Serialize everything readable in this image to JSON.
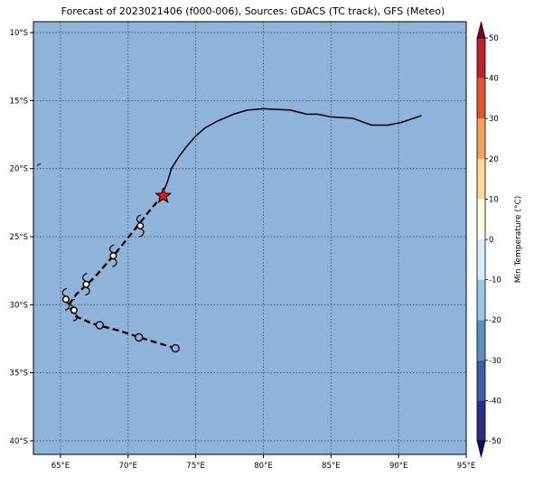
{
  "title": "Forecast of 2023021406 (f000-006), Sources: GDACS (TC track), GFS (Meteo)",
  "map": {
    "lon_range": [
      63,
      95
    ],
    "lat_range": [
      -41,
      -9.2
    ],
    "x_ticks": [
      {
        "value": 65,
        "label": "65°E"
      },
      {
        "value": 70,
        "label": "70°E"
      },
      {
        "value": 75,
        "label": "75°E"
      },
      {
        "value": 80,
        "label": "80°E"
      },
      {
        "value": 85,
        "label": "85°E"
      },
      {
        "value": 90,
        "label": "90°E"
      },
      {
        "value": 95,
        "label": "95°E"
      }
    ],
    "y_ticks": [
      {
        "value": -10,
        "label": "10°S"
      },
      {
        "value": -15,
        "label": "15°S"
      },
      {
        "value": -20,
        "label": "20°S"
      },
      {
        "value": -25,
        "label": "25°S"
      },
      {
        "value": -30,
        "label": "30°S"
      },
      {
        "value": -35,
        "label": "35°S"
      },
      {
        "value": -40,
        "label": "40°S"
      }
    ],
    "background_color": "#8fb3d9",
    "grid": true
  },
  "past_track": [
    [
      72.6,
      -21.7
    ],
    [
      72.9,
      -21.0
    ],
    [
      73.2,
      -20.0
    ],
    [
      73.7,
      -19.2
    ],
    [
      74.3,
      -18.4
    ],
    [
      75.0,
      -17.6
    ],
    [
      75.7,
      -17.0
    ],
    [
      76.6,
      -16.5
    ],
    [
      77.8,
      -16.0
    ],
    [
      78.8,
      -15.7
    ],
    [
      80.0,
      -15.6
    ],
    [
      82.0,
      -15.7
    ],
    [
      83.2,
      -16.0
    ],
    [
      84.0,
      -16.0
    ],
    [
      85.0,
      -16.2
    ],
    [
      86.6,
      -16.3
    ],
    [
      88.0,
      -16.8
    ],
    [
      89.2,
      -16.8
    ],
    [
      90.2,
      -16.6
    ],
    [
      91.7,
      -16.1
    ]
  ],
  "forecast_track": [
    [
      72.6,
      -21.9
    ],
    [
      71.5,
      -23.2
    ],
    [
      70.3,
      -24.7
    ],
    [
      69.0,
      -26.3
    ],
    [
      67.5,
      -28.0
    ],
    [
      66.2,
      -29.2
    ],
    [
      65.6,
      -30.0
    ],
    [
      66.0,
      -30.8
    ],
    [
      67.4,
      -31.4
    ],
    [
      69.3,
      -31.9
    ],
    [
      71.5,
      -32.6
    ],
    [
      73.5,
      -33.2
    ]
  ],
  "current_position": {
    "lon": 72.6,
    "lat": -22.0,
    "color": "#e8141b"
  },
  "forecast_points": [
    {
      "lon": 70.9,
      "lat": -24.2,
      "symbol": "tc-symbol-icon"
    },
    {
      "lon": 68.9,
      "lat": -26.4,
      "symbol": "tc-symbol-icon"
    },
    {
      "lon": 66.9,
      "lat": -28.5,
      "symbol": "tc-symbol-icon"
    },
    {
      "lon": 65.4,
      "lat": -29.6,
      "symbol": "tc-symbol-icon"
    },
    {
      "lon": 66.0,
      "lat": -30.4,
      "symbol": "tc-symbol-icon"
    },
    {
      "lon": 67.9,
      "lat": -31.5,
      "symbol": "circle-icon"
    },
    {
      "lon": 70.8,
      "lat": -32.4,
      "symbol": "circle-icon"
    },
    {
      "lon": 73.5,
      "lat": -33.2,
      "symbol": "circle-icon"
    }
  ],
  "small_mark": {
    "lon": 63.4,
    "lat": -19.7
  },
  "colorbar": {
    "label": "Min Temperature (°C)",
    "min": -55,
    "max": 55,
    "ticks": [
      50,
      40,
      30,
      20,
      10,
      0,
      -10,
      -20,
      -30,
      -40,
      -50
    ],
    "bands": [
      {
        "from": -55,
        "to": -50,
        "color": "#0b0f5e"
      },
      {
        "from": -50,
        "to": -40,
        "color": "#2b2b8c"
      },
      {
        "from": -40,
        "to": -30,
        "color": "#3b5ea6"
      },
      {
        "from": -30,
        "to": -20,
        "color": "#5d8ec1"
      },
      {
        "from": -20,
        "to": -10,
        "color": "#9ac8e0"
      },
      {
        "from": -10,
        "to": 0,
        "color": "#d6eef5"
      },
      {
        "from": 0,
        "to": 10,
        "color": "#fffbe0"
      },
      {
        "from": 10,
        "to": 20,
        "color": "#fdd89a"
      },
      {
        "from": 20,
        "to": 30,
        "color": "#f7a05b"
      },
      {
        "from": 30,
        "to": 40,
        "color": "#e3552f"
      },
      {
        "from": 40,
        "to": 50,
        "color": "#bf1e2d"
      },
      {
        "from": 50,
        "to": 55,
        "color": "#7a0225"
      }
    ]
  }
}
